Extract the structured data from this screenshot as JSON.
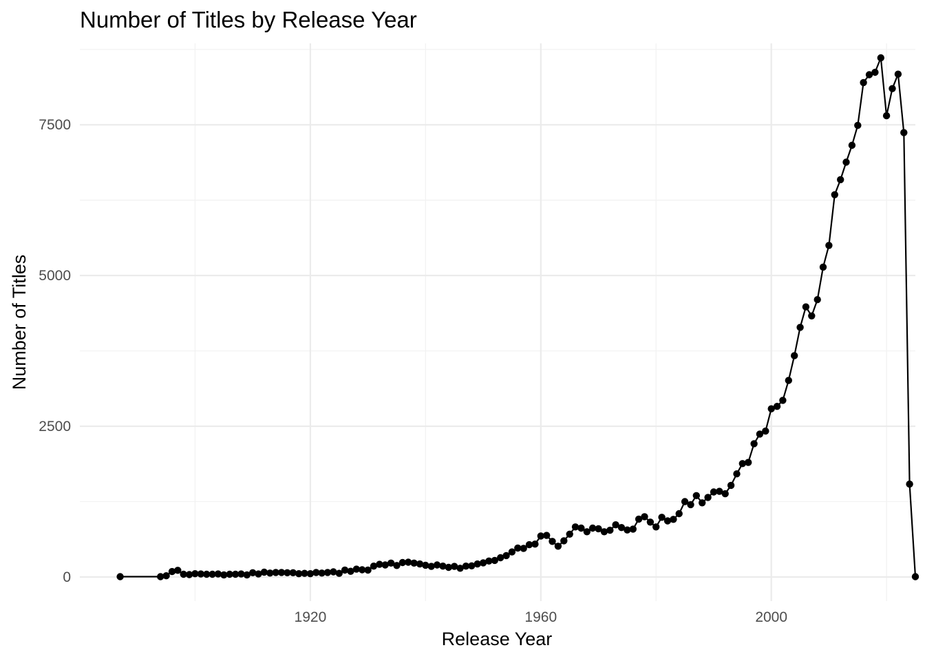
{
  "chart_data": {
    "type": "line",
    "title": "Number of Titles by Release Year",
    "xlabel": "Release Year",
    "ylabel": "Number of Titles",
    "xlim": [
      1880,
      2025
    ],
    "ylim": [
      -400,
      8850
    ],
    "x_ticks": [
      1920,
      1960,
      2000
    ],
    "x_minor_ticks": [
      1900,
      1940,
      1980,
      2020
    ],
    "y_ticks": [
      0,
      2500,
      5000,
      7500
    ],
    "y_minor_ticks": [
      1250,
      3750,
      6250,
      8750
    ],
    "grid": true,
    "legend": "none",
    "markers": true,
    "colors": {
      "series": "#000000",
      "grid": "#ebebeb",
      "tick_text": "#4d4d4d"
    },
    "series": [
      {
        "points": [
          [
            1887,
            5
          ],
          [
            1894,
            5
          ],
          [
            1895,
            20
          ],
          [
            1896,
            90
          ],
          [
            1897,
            110
          ],
          [
            1898,
            45
          ],
          [
            1899,
            40
          ],
          [
            1900,
            55
          ],
          [
            1901,
            50
          ],
          [
            1902,
            45
          ],
          [
            1903,
            45
          ],
          [
            1904,
            50
          ],
          [
            1905,
            35
          ],
          [
            1906,
            45
          ],
          [
            1907,
            45
          ],
          [
            1908,
            50
          ],
          [
            1909,
            35
          ],
          [
            1910,
            70
          ],
          [
            1911,
            50
          ],
          [
            1912,
            80
          ],
          [
            1913,
            65
          ],
          [
            1914,
            75
          ],
          [
            1915,
            75
          ],
          [
            1916,
            70
          ],
          [
            1917,
            70
          ],
          [
            1918,
            55
          ],
          [
            1919,
            60
          ],
          [
            1920,
            55
          ],
          [
            1921,
            75
          ],
          [
            1922,
            65
          ],
          [
            1923,
            75
          ],
          [
            1924,
            85
          ],
          [
            1925,
            60
          ],
          [
            1926,
            115
          ],
          [
            1927,
            95
          ],
          [
            1928,
            130
          ],
          [
            1929,
            120
          ],
          [
            1930,
            115
          ],
          [
            1931,
            180
          ],
          [
            1932,
            210
          ],
          [
            1933,
            200
          ],
          [
            1934,
            230
          ],
          [
            1935,
            190
          ],
          [
            1936,
            240
          ],
          [
            1937,
            245
          ],
          [
            1938,
            230
          ],
          [
            1939,
            215
          ],
          [
            1940,
            195
          ],
          [
            1941,
            175
          ],
          [
            1942,
            200
          ],
          [
            1943,
            180
          ],
          [
            1944,
            160
          ],
          [
            1945,
            175
          ],
          [
            1946,
            145
          ],
          [
            1947,
            180
          ],
          [
            1948,
            185
          ],
          [
            1949,
            215
          ],
          [
            1950,
            235
          ],
          [
            1951,
            265
          ],
          [
            1952,
            275
          ],
          [
            1953,
            320
          ],
          [
            1954,
            355
          ],
          [
            1955,
            415
          ],
          [
            1956,
            480
          ],
          [
            1957,
            475
          ],
          [
            1958,
            535
          ],
          [
            1959,
            545
          ],
          [
            1960,
            680
          ],
          [
            1961,
            690
          ],
          [
            1962,
            590
          ],
          [
            1963,
            510
          ],
          [
            1964,
            600
          ],
          [
            1965,
            710
          ],
          [
            1966,
            830
          ],
          [
            1967,
            810
          ],
          [
            1968,
            750
          ],
          [
            1969,
            810
          ],
          [
            1970,
            800
          ],
          [
            1971,
            750
          ],
          [
            1972,
            775
          ],
          [
            1973,
            865
          ],
          [
            1974,
            820
          ],
          [
            1975,
            780
          ],
          [
            1976,
            795
          ],
          [
            1977,
            960
          ],
          [
            1978,
            1000
          ],
          [
            1979,
            910
          ],
          [
            1980,
            830
          ],
          [
            1981,
            990
          ],
          [
            1982,
            930
          ],
          [
            1983,
            955
          ],
          [
            1984,
            1050
          ],
          [
            1985,
            1250
          ],
          [
            1986,
            1200
          ],
          [
            1987,
            1350
          ],
          [
            1988,
            1230
          ],
          [
            1989,
            1320
          ],
          [
            1990,
            1410
          ],
          [
            1991,
            1420
          ],
          [
            1992,
            1380
          ],
          [
            1993,
            1520
          ],
          [
            1994,
            1710
          ],
          [
            1995,
            1880
          ],
          [
            1996,
            1900
          ],
          [
            1997,
            2210
          ],
          [
            1998,
            2370
          ],
          [
            1999,
            2420
          ],
          [
            2000,
            2790
          ],
          [
            2001,
            2830
          ],
          [
            2002,
            2930
          ],
          [
            2003,
            3260
          ],
          [
            2004,
            3670
          ],
          [
            2005,
            4140
          ],
          [
            2006,
            4480
          ],
          [
            2007,
            4330
          ],
          [
            2008,
            4600
          ],
          [
            2009,
            5140
          ],
          [
            2010,
            5500
          ],
          [
            2011,
            6340
          ],
          [
            2012,
            6590
          ],
          [
            2013,
            6880
          ],
          [
            2014,
            7160
          ],
          [
            2015,
            7490
          ],
          [
            2016,
            8200
          ],
          [
            2017,
            8330
          ],
          [
            2018,
            8370
          ],
          [
            2019,
            8610
          ],
          [
            2020,
            7650
          ],
          [
            2021,
            8100
          ],
          [
            2022,
            8340
          ],
          [
            2023,
            7370
          ],
          [
            2024,
            1540
          ],
          [
            2025,
            5
          ]
        ]
      }
    ]
  }
}
